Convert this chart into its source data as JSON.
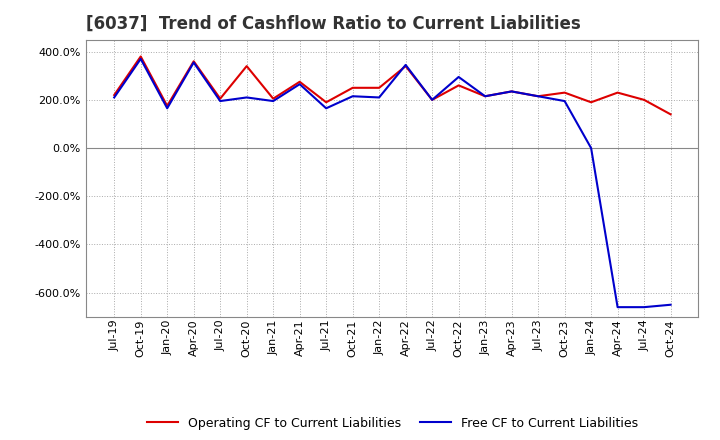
{
  "title": "[6037]  Trend of Cashflow Ratio to Current Liabilities",
  "x_labels": [
    "Jul-19",
    "Oct-19",
    "Jan-20",
    "Apr-20",
    "Jul-20",
    "Oct-20",
    "Jan-21",
    "Apr-21",
    "Jul-21",
    "Oct-21",
    "Jan-22",
    "Apr-22",
    "Jul-22",
    "Oct-22",
    "Jan-23",
    "Apr-23",
    "Jul-23",
    "Oct-23",
    "Jan-24",
    "Apr-24",
    "Jul-24",
    "Oct-24"
  ],
  "operating_cf": [
    220,
    380,
    175,
    360,
    205,
    340,
    205,
    275,
    190,
    250,
    250,
    340,
    200,
    260,
    215,
    235,
    215,
    230,
    190,
    230,
    200,
    140
  ],
  "free_cf": [
    210,
    370,
    165,
    355,
    195,
    210,
    195,
    265,
    165,
    215,
    210,
    345,
    200,
    295,
    215,
    235,
    215,
    195,
    0,
    -660,
    -660,
    -650
  ],
  "ylim": [
    -700,
    450
  ],
  "yticks": [
    400,
    200,
    0,
    -200,
    -400,
    -600
  ],
  "operating_color": "#dd0000",
  "free_color": "#0000cc",
  "background_color": "#ffffff",
  "plot_bg_color": "#ffffff",
  "grid_color": "#aaaaaa",
  "title_color": "#333333",
  "legend_operating": "Operating CF to Current Liabilities",
  "legend_free": "Free CF to Current Liabilities",
  "title_fontsize": 12,
  "tick_fontsize": 8,
  "legend_fontsize": 9
}
